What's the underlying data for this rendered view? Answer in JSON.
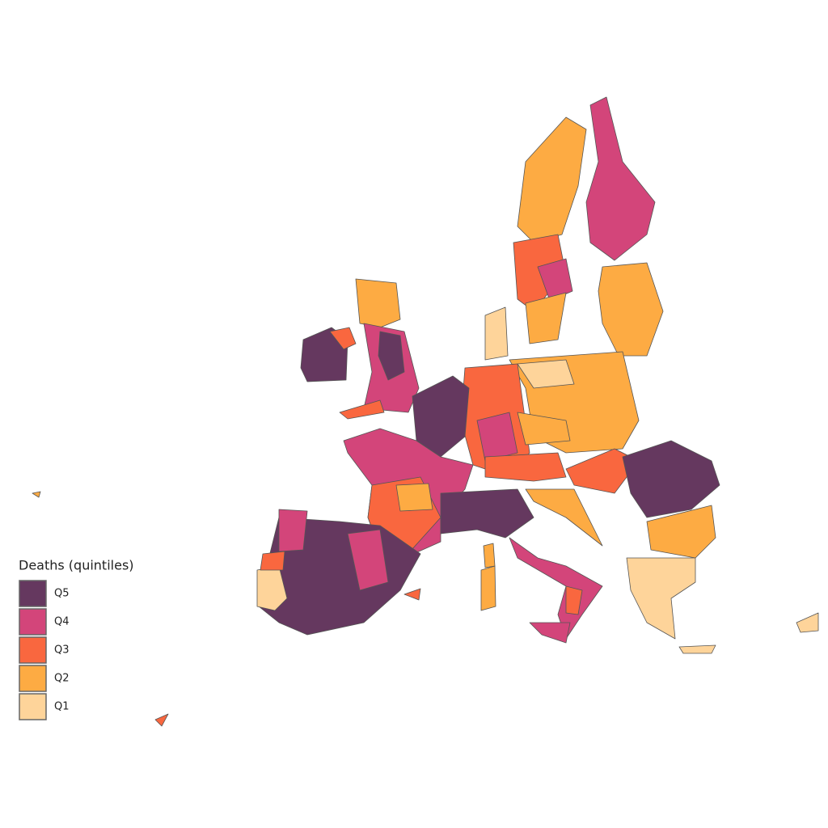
{
  "legend": {
    "title": "Deaths (quintiles)",
    "items": [
      {
        "label": "Q5",
        "color": "#65385f"
      },
      {
        "label": "Q4",
        "color": "#d3457a"
      },
      {
        "label": "Q3",
        "color": "#f9673f"
      },
      {
        "label": "Q2",
        "color": "#fdab43"
      },
      {
        "label": "Q1",
        "color": "#fed49a"
      }
    ]
  }
}
